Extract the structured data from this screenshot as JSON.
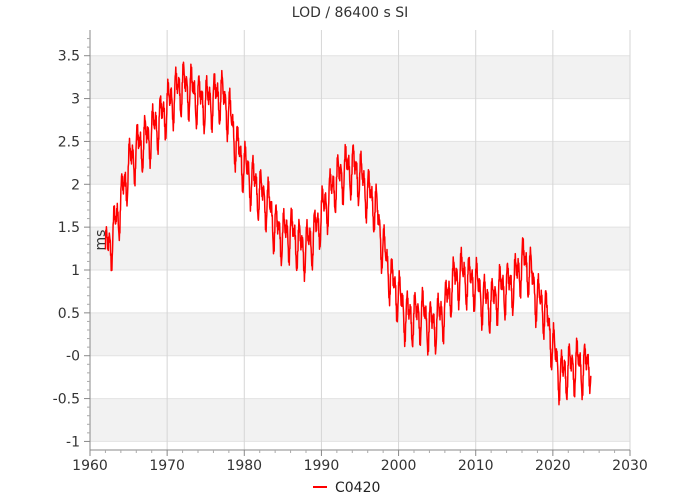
{
  "chart_data": {
    "type": "line",
    "title": "LOD / 86400 s SI",
    "xlabel": "",
    "ylabel": "ms",
    "xlim": [
      1960,
      2030
    ],
    "ylim": [
      -1.1,
      3.8
    ],
    "x_ticks": [
      1960,
      1970,
      1980,
      1990,
      2000,
      2010,
      2020,
      2030
    ],
    "x_tick_labels": [
      "1960",
      "1970",
      "1980",
      "1990",
      "2000",
      "2010",
      "2020",
      "2030"
    ],
    "y_ticks": [
      -1,
      -0.5,
      0,
      0.5,
      1,
      1.5,
      2,
      2.5,
      3,
      3.5
    ],
    "y_tick_labels": [
      "-1",
      "-0.5",
      "-0",
      "0.5",
      "1",
      "1.5",
      "2",
      "2.5",
      "3",
      "3.5"
    ],
    "grid": true,
    "legend_position": "bottom-center",
    "series": [
      {
        "name": "C0420",
        "color": "#ff0000",
        "trend_x": [
          1962,
          1963,
          1964,
          1965,
          1966,
          1967,
          1968,
          1969,
          1970,
          1971,
          1972,
          1973,
          1974,
          1975,
          1976,
          1977,
          1978,
          1979,
          1980,
          1981,
          1982,
          1983,
          1984,
          1985,
          1986,
          1987,
          1988,
          1989,
          1990,
          1991,
          1992,
          1993,
          1994,
          1995,
          1996,
          1997,
          1998,
          1999,
          2000,
          2001,
          2002,
          2003,
          2004,
          2005,
          2006,
          2007,
          2008,
          2009,
          2010,
          2011,
          2012,
          2013,
          2014,
          2015,
          2016,
          2017,
          2018,
          2019,
          2020,
          2021,
          2022,
          2023,
          2024,
          2025
        ],
        "trend_y": [
          1.2,
          1.4,
          1.8,
          2.2,
          2.4,
          2.5,
          2.6,
          2.75,
          2.9,
          3.05,
          3.15,
          3.1,
          3.0,
          2.95,
          3.0,
          3.05,
          2.85,
          2.45,
          2.2,
          2.05,
          1.9,
          1.8,
          1.5,
          1.4,
          1.45,
          1.3,
          1.25,
          1.4,
          1.65,
          1.85,
          2.05,
          2.15,
          2.2,
          2.1,
          1.9,
          1.75,
          1.25,
          0.9,
          0.7,
          0.45,
          0.45,
          0.5,
          0.35,
          0.4,
          0.55,
          0.85,
          0.95,
          0.9,
          0.85,
          0.65,
          0.6,
          0.75,
          0.8,
          0.85,
          1.1,
          1.0,
          0.65,
          0.55,
          0.1,
          -0.25,
          -0.15,
          -0.1,
          -0.15,
          -0.05
        ],
        "annual_amplitude": 0.35,
        "points_per_year": 24
      }
    ]
  }
}
